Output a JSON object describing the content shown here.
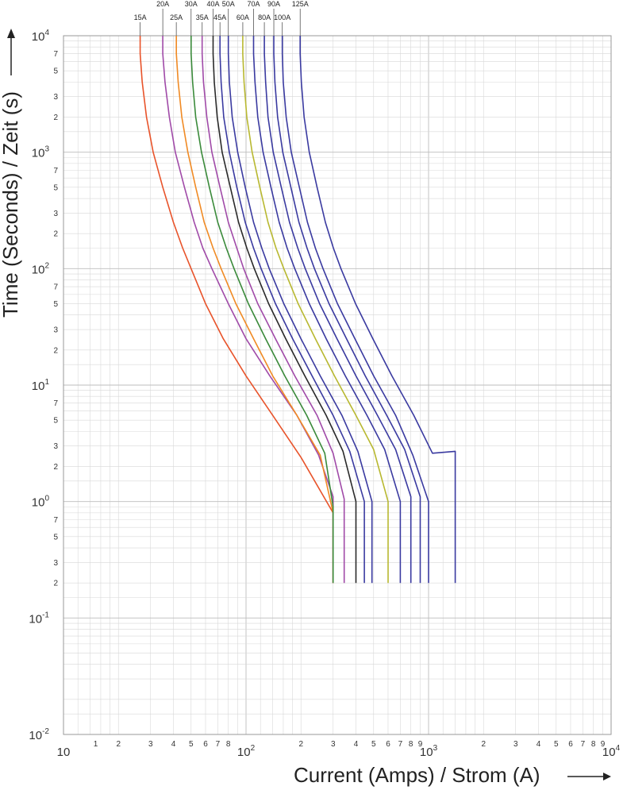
{
  "chart_data": {
    "type": "line",
    "xscale": "log",
    "yscale": "log",
    "xlim": [
      10,
      10000
    ],
    "ylim": [
      0.01,
      10000
    ],
    "xlabel": "Current (Amps) / Strom (A)",
    "ylabel": "Time (Seconds) / Zeit (s)",
    "x_major_labels": [
      {
        "value": 10,
        "base": "10",
        "exp": ""
      },
      {
        "value": 100,
        "base": "10",
        "exp": "2"
      },
      {
        "value": 1000,
        "base": "10",
        "exp": "3"
      },
      {
        "value": 10000,
        "base": "10",
        "exp": "4"
      }
    ],
    "x_minor_labels": [
      "1",
      "2",
      "3",
      "4",
      "5",
      "6",
      "7",
      "8",
      "2",
      "3",
      "4",
      "5",
      "6",
      "7",
      "8",
      "9",
      "2",
      "3",
      "4",
      "5",
      "6",
      "7",
      "8",
      "9"
    ],
    "y_major_labels": [
      {
        "value": 10000,
        "base": "10",
        "exp": "4"
      },
      {
        "value": 1000,
        "base": "10",
        "exp": "3"
      },
      {
        "value": 100,
        "base": "10",
        "exp": "2"
      },
      {
        "value": 10,
        "base": "10",
        "exp": "1"
      },
      {
        "value": 1,
        "base": "10",
        "exp": "0"
      },
      {
        "value": 0.1,
        "base": "10",
        "exp": "-1"
      },
      {
        "value": 0.01,
        "base": "10",
        "exp": "-2"
      }
    ],
    "y_minor_labels": [
      "7",
      "5",
      "3",
      "2"
    ],
    "grid": true,
    "series": [
      {
        "name": "15A",
        "color": "#e8532a",
        "points": [
          [
            26.3,
            10000
          ],
          [
            26.3,
            7000
          ],
          [
            27,
            4000
          ],
          [
            28.5,
            2000
          ],
          [
            31,
            1000
          ],
          [
            35,
            500
          ],
          [
            40,
            250
          ],
          [
            45,
            150
          ],
          [
            50,
            100
          ],
          [
            60,
            50
          ],
          [
            75,
            25
          ],
          [
            100,
            12
          ],
          [
            140,
            5.5
          ],
          [
            200,
            2.4
          ],
          [
            300,
            0.8
          ],
          [
            300,
            0.2
          ]
        ]
      },
      {
        "name": "20A",
        "color": "#a04aa8",
        "points": [
          [
            35,
            10000
          ],
          [
            35,
            7000
          ],
          [
            36,
            4000
          ],
          [
            38,
            2000
          ],
          [
            41,
            1000
          ],
          [
            46,
            500
          ],
          [
            52,
            250
          ],
          [
            58,
            150
          ],
          [
            65,
            100
          ],
          [
            80,
            50
          ],
          [
            100,
            25
          ],
          [
            135,
            12
          ],
          [
            190,
            5.5
          ],
          [
            250,
            2.5
          ],
          [
            300,
            1.1
          ],
          [
            300,
            0.2
          ]
        ]
      },
      {
        "name": "25A",
        "color": "#f08a24",
        "points": [
          [
            41.5,
            10000
          ],
          [
            41.5,
            7000
          ],
          [
            42.5,
            4000
          ],
          [
            44.5,
            2000
          ],
          [
            48,
            1000
          ],
          [
            53,
            500
          ],
          [
            59,
            250
          ],
          [
            66,
            150
          ],
          [
            73,
            100
          ],
          [
            88,
            50
          ],
          [
            110,
            25
          ],
          [
            140,
            12
          ],
          [
            190,
            5.5
          ],
          [
            255,
            2.5
          ],
          [
            300,
            0.8
          ],
          [
            300,
            0.2
          ]
        ]
      },
      {
        "name": "30A",
        "color": "#3a8a3a",
        "points": [
          [
            50,
            10000
          ],
          [
            50,
            7000
          ],
          [
            51,
            4000
          ],
          [
            53,
            2000
          ],
          [
            57,
            1000
          ],
          [
            63,
            500
          ],
          [
            70,
            250
          ],
          [
            78,
            150
          ],
          [
            86,
            100
          ],
          [
            103,
            50
          ],
          [
            128,
            25
          ],
          [
            163,
            12
          ],
          [
            215,
            5.5
          ],
          [
            270,
            2.6
          ],
          [
            300,
            0.9
          ],
          [
            300,
            0.2
          ]
        ]
      },
      {
        "name": "35A",
        "color": "#a04aa8",
        "points": [
          [
            57.5,
            10000
          ],
          [
            57.5,
            7000
          ],
          [
            58.5,
            4000
          ],
          [
            61,
            2000
          ],
          [
            65,
            1000
          ],
          [
            72,
            500
          ],
          [
            80,
            250
          ],
          [
            89,
            150
          ],
          [
            97,
            100
          ],
          [
            116,
            50
          ],
          [
            145,
            25
          ],
          [
            185,
            12
          ],
          [
            245,
            5.5
          ],
          [
            300,
            2.6
          ],
          [
            345,
            1.05
          ],
          [
            345,
            0.2
          ]
        ]
      },
      {
        "name": "40A",
        "color": "#2a2a2a",
        "points": [
          [
            66,
            10000
          ],
          [
            66,
            7000
          ],
          [
            67,
            4000
          ],
          [
            69.5,
            2000
          ],
          [
            74,
            1000
          ],
          [
            82,
            500
          ],
          [
            91,
            250
          ],
          [
            101,
            150
          ],
          [
            111,
            100
          ],
          [
            133,
            50
          ],
          [
            165,
            25
          ],
          [
            210,
            12
          ],
          [
            275,
            5.5
          ],
          [
            340,
            2.7
          ],
          [
            400,
            1.0
          ],
          [
            400,
            0.2
          ]
        ]
      },
      {
        "name": "45A",
        "color": "#3a3aa0",
        "points": [
          [
            72,
            10000
          ],
          [
            72,
            7000
          ],
          [
            73,
            4000
          ],
          [
            75.5,
            2000
          ],
          [
            81,
            1000
          ],
          [
            89,
            500
          ],
          [
            99,
            250
          ],
          [
            110,
            150
          ],
          [
            121,
            100
          ],
          [
            145,
            50
          ],
          [
            180,
            25
          ],
          [
            230,
            12
          ],
          [
            300,
            5.5
          ],
          [
            370,
            2.7
          ],
          [
            445,
            1.0
          ],
          [
            445,
            0.2
          ]
        ]
      },
      {
        "name": "50A",
        "color": "#3a3aa0",
        "points": [
          [
            80,
            10000
          ],
          [
            80,
            7000
          ],
          [
            81,
            4000
          ],
          [
            84,
            2000
          ],
          [
            90,
            1000
          ],
          [
            99,
            500
          ],
          [
            110,
            250
          ],
          [
            122,
            150
          ],
          [
            134,
            100
          ],
          [
            161,
            50
          ],
          [
            200,
            25
          ],
          [
            255,
            12
          ],
          [
            335,
            5.5
          ],
          [
            410,
            2.7
          ],
          [
            490,
            1.0
          ],
          [
            490,
            0.2
          ]
        ]
      },
      {
        "name": "60A",
        "color": "#b8b830",
        "points": [
          [
            96,
            10000
          ],
          [
            96,
            7000
          ],
          [
            97.5,
            4000
          ],
          [
            101,
            2000
          ],
          [
            108,
            1000
          ],
          [
            119,
            500
          ],
          [
            132,
            250
          ],
          [
            146,
            150
          ],
          [
            161,
            100
          ],
          [
            193,
            50
          ],
          [
            240,
            25
          ],
          [
            305,
            12
          ],
          [
            400,
            5.5
          ],
          [
            500,
            2.8
          ],
          [
            600,
            1.0
          ],
          [
            600,
            0.2
          ]
        ]
      },
      {
        "name": "70A",
        "color": "#3a3aa0",
        "points": [
          [
            110,
            10000
          ],
          [
            110,
            7000
          ],
          [
            112,
            4000
          ],
          [
            116,
            2000
          ],
          [
            124,
            1000
          ],
          [
            137,
            500
          ],
          [
            152,
            250
          ],
          [
            168,
            150
          ],
          [
            185,
            100
          ],
          [
            222,
            50
          ],
          [
            275,
            25
          ],
          [
            350,
            12
          ],
          [
            460,
            5.5
          ],
          [
            575,
            2.8
          ],
          [
            700,
            1.0
          ],
          [
            700,
            0.2
          ]
        ]
      },
      {
        "name": "80A",
        "color": "#3a3aa0",
        "points": [
          [
            126,
            10000
          ],
          [
            126,
            7000
          ],
          [
            128,
            4000
          ],
          [
            132,
            2000
          ],
          [
            141,
            1000
          ],
          [
            156,
            500
          ],
          [
            173,
            250
          ],
          [
            192,
            150
          ],
          [
            211,
            100
          ],
          [
            253,
            50
          ],
          [
            315,
            25
          ],
          [
            400,
            12
          ],
          [
            525,
            5.5
          ],
          [
            660,
            2.8
          ],
          [
            800,
            1.1
          ],
          [
            800,
            0.2
          ]
        ]
      },
      {
        "name": "90A",
        "color": "#3a3aa0",
        "points": [
          [
            142,
            10000
          ],
          [
            142,
            7000
          ],
          [
            144,
            4000
          ],
          [
            149,
            2000
          ],
          [
            159,
            1000
          ],
          [
            176,
            500
          ],
          [
            195,
            250
          ],
          [
            216,
            150
          ],
          [
            237,
            100
          ],
          [
            285,
            50
          ],
          [
            355,
            25
          ],
          [
            450,
            12
          ],
          [
            590,
            5.5
          ],
          [
            740,
            2.8
          ],
          [
            900,
            1.1
          ],
          [
            900,
            0.2
          ]
        ]
      },
      {
        "name": "100A",
        "color": "#3a3aa0",
        "points": [
          [
            158,
            10000
          ],
          [
            158,
            7000
          ],
          [
            160,
            4000
          ],
          [
            166,
            2000
          ],
          [
            177,
            1000
          ],
          [
            196,
            500
          ],
          [
            217,
            250
          ],
          [
            240,
            150
          ],
          [
            264,
            100
          ],
          [
            317,
            50
          ],
          [
            395,
            25
          ],
          [
            500,
            12
          ],
          [
            660,
            5.5
          ],
          [
            820,
            2.5
          ],
          [
            1000,
            1.0
          ],
          [
            1000,
            0.2
          ]
        ]
      },
      {
        "name": "125A",
        "color": "#3a3aa0",
        "points": [
          [
            198,
            10000
          ],
          [
            198,
            7000
          ],
          [
            201,
            4000
          ],
          [
            208,
            2000
          ],
          [
            222,
            1000
          ],
          [
            245,
            500
          ],
          [
            272,
            250
          ],
          [
            301,
            150
          ],
          [
            331,
            100
          ],
          [
            398,
            50
          ],
          [
            495,
            25
          ],
          [
            630,
            12
          ],
          [
            830,
            5.5
          ],
          [
            1050,
            2.6
          ],
          [
            1400,
            2.7
          ],
          [
            1400,
            0.2
          ]
        ]
      }
    ]
  }
}
